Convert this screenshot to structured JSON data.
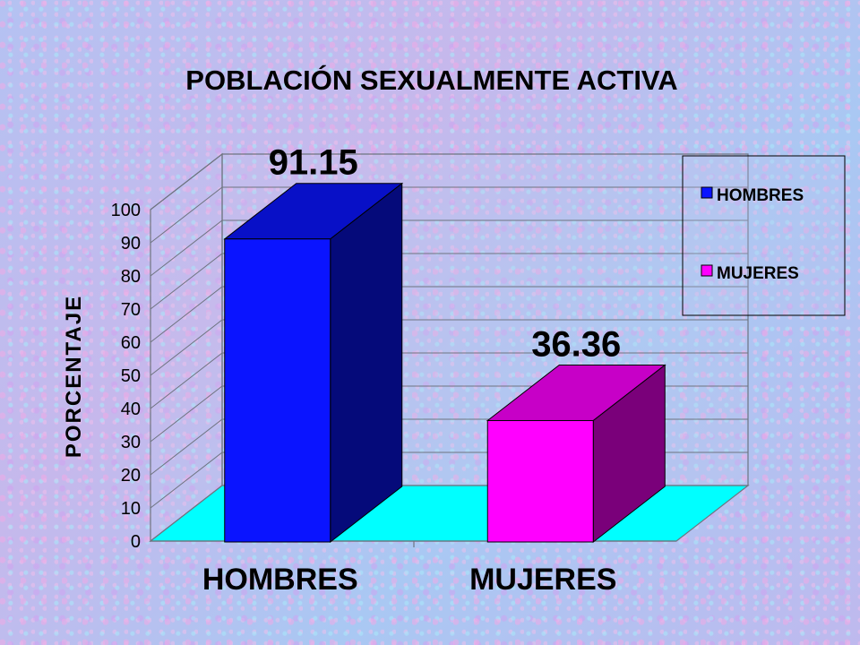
{
  "chart_data": {
    "type": "bar",
    "title": "POBLACIÓN SEXUALMENTE ACTIVA",
    "ylabel": "PORCENTAJE",
    "xlabel": "",
    "categories": [
      "HOMBRES",
      "MUJERES"
    ],
    "values": [
      91.15,
      36.36
    ],
    "value_labels": [
      "91.15",
      "36.36"
    ],
    "ylim": [
      0,
      100
    ],
    "yticks": [
      0,
      10,
      20,
      30,
      40,
      50,
      60,
      70,
      80,
      90,
      100
    ],
    "grid": true,
    "style": "3d-column",
    "legend": {
      "position": "right",
      "entries": [
        "HOMBRES",
        "MUJERES"
      ]
    },
    "colors": {
      "bars": [
        "#0a14ff",
        "#ff00ff"
      ],
      "floor": "#00ffff"
    }
  }
}
